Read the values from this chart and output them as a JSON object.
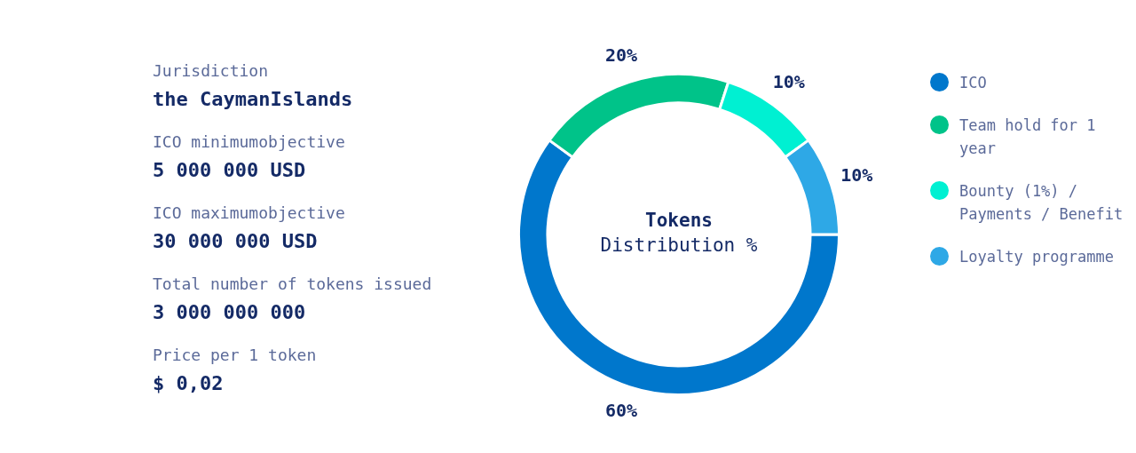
{
  "chart_data": [
    {
      "type": "other",
      "annotations": [
        "Jurisdiction",
        "the CaymanIslands",
        "ICO minimumobjective",
        "5 000 000 USD",
        "ICO maximumobjective",
        "30 000 000 USD",
        "Total number of tokens issued",
        "3 000 000 000",
        "Price per 1 token",
        "$ 0,02"
      ]
    },
    {
      "type": "donut",
      "title": "Tokens",
      "subtitle": "Distribution %",
      "categories": [
        "ICO",
        "Team hold for 1 year",
        "Bounty (1%) / Payments / Benefit",
        "Loyalty programme"
      ],
      "values": [
        60,
        20,
        10,
        10
      ],
      "colors": [
        "#0077cc",
        "#00c389",
        "#00f0d2",
        "#2ea8e6"
      ],
      "value_labels": [
        "60%",
        "20%",
        "10%",
        "10%"
      ],
      "legend": "right"
    }
  ]
}
